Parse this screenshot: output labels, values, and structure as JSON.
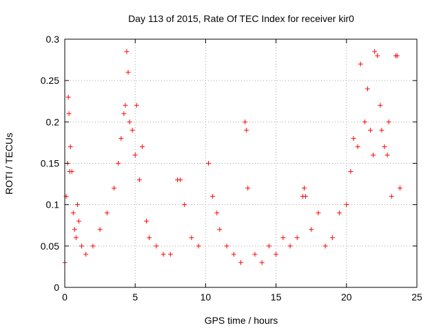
{
  "chart_data": {
    "type": "scatter",
    "title": "Day 113 of 2015, Rate Of TEC Index for receiver kir0",
    "xlabel": "GPS time / hours",
    "ylabel": "ROTI / TECUs",
    "xlim": [
      0,
      25
    ],
    "ylim": [
      0,
      0.3
    ],
    "xticks": [
      0,
      5,
      10,
      15,
      20,
      25
    ],
    "xtick_labels": [
      "0",
      "5",
      "10",
      "15",
      "20",
      "25"
    ],
    "yticks": [
      0,
      0.05,
      0.1,
      0.15,
      0.2,
      0.25,
      0.3
    ],
    "ytick_labels": [
      "0",
      "0.05",
      "0.1",
      "0.15",
      "0.2",
      "0.25",
      "0.3"
    ],
    "grid": true,
    "legend": "none",
    "marker": "plus",
    "color": "#ff0000",
    "x": [
      0.0,
      0.1,
      0.2,
      0.25,
      0.3,
      0.35,
      0.4,
      0.5,
      0.6,
      0.7,
      0.8,
      0.9,
      1.0,
      1.2,
      1.5,
      2.0,
      2.5,
      3.0,
      3.5,
      3.8,
      4.0,
      4.2,
      4.3,
      4.4,
      4.5,
      4.6,
      4.8,
      5.0,
      5.1,
      5.3,
      5.5,
      5.8,
      6.0,
      6.5,
      7.0,
      7.5,
      8.0,
      8.2,
      8.5,
      9.0,
      9.5,
      10.2,
      10.5,
      10.8,
      11.0,
      11.5,
      12.0,
      12.5,
      12.8,
      12.9,
      13.0,
      13.5,
      14.0,
      14.5,
      15.0,
      15.5,
      16.0,
      16.5,
      16.9,
      17.0,
      17.1,
      17.5,
      18.0,
      18.5,
      19.0,
      19.5,
      20.0,
      20.3,
      20.5,
      20.8,
      21.0,
      21.3,
      21.5,
      21.7,
      21.9,
      22.0,
      22.2,
      22.4,
      22.5,
      22.7,
      22.9,
      23.0,
      23.2,
      23.5,
      23.6,
      23.8
    ],
    "y": [
      0.03,
      0.11,
      0.15,
      0.23,
      0.21,
      0.14,
      0.17,
      0.14,
      0.09,
      0.07,
      0.06,
      0.1,
      0.08,
      0.05,
      0.04,
      0.05,
      0.07,
      0.09,
      0.12,
      0.15,
      0.18,
      0.21,
      0.22,
      0.285,
      0.26,
      0.2,
      0.19,
      0.16,
      0.22,
      0.13,
      0.17,
      0.08,
      0.06,
      0.05,
      0.04,
      0.04,
      0.13,
      0.13,
      0.1,
      0.06,
      0.05,
      0.15,
      0.11,
      0.09,
      0.07,
      0.05,
      0.04,
      0.03,
      0.2,
      0.19,
      0.12,
      0.04,
      0.03,
      0.05,
      0.04,
      0.06,
      0.05,
      0.06,
      0.11,
      0.12,
      0.11,
      0.07,
      0.09,
      0.05,
      0.06,
      0.09,
      0.1,
      0.14,
      0.18,
      0.17,
      0.27,
      0.2,
      0.24,
      0.19,
      0.16,
      0.285,
      0.28,
      0.22,
      0.19,
      0.17,
      0.16,
      0.2,
      0.11,
      0.28,
      0.28,
      0.12
    ]
  }
}
